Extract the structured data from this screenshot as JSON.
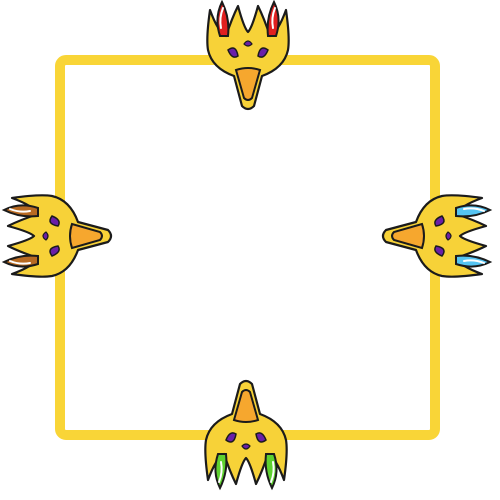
{
  "board": {
    "frame_color": "#f9d537",
    "frame_shape": "rounded-square"
  },
  "pieces": [
    {
      "id": "piece-top",
      "facing": "down",
      "tip_color": "#e02020",
      "tip_color_dark": "#8a0f0f",
      "icon": "crown-mask-icon"
    },
    {
      "id": "piece-bottom",
      "facing": "up",
      "tip_color": "#5ed12f",
      "tip_color_dark": "#2c7a17",
      "icon": "crown-mask-icon"
    },
    {
      "id": "piece-left",
      "facing": "right",
      "tip_color": "#b86a22",
      "tip_color_dark": "#6a3a0f",
      "icon": "crown-mask-icon"
    },
    {
      "id": "piece-right",
      "facing": "left",
      "tip_color": "#55c4f2",
      "tip_color_dark": "#1c7fb3",
      "icon": "crown-mask-icon"
    }
  ],
  "colors": {
    "body": "#f7d238",
    "body_shadow": "#e4b81c",
    "beak": "#f6a72e",
    "eye": "#6a1fa8",
    "outline": "#1b1b1b"
  }
}
